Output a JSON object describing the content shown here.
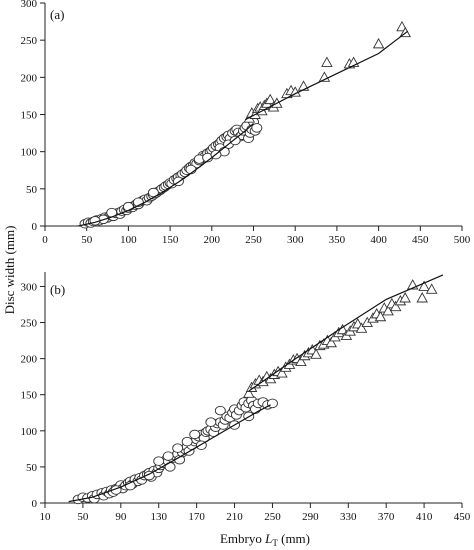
{
  "chart_data": [
    {
      "type": "scatter",
      "panel_label": "(a)",
      "xlim": [
        0,
        500
      ],
      "ylim": [
        0,
        300
      ],
      "xticks": [
        0,
        50,
        100,
        150,
        200,
        250,
        300,
        350,
        400,
        450,
        500
      ],
      "yticks": [
        0,
        50,
        100,
        150,
        200,
        250,
        300
      ],
      "series": [
        {
          "marker": "circle",
          "points": [
            [
              48,
              3
            ],
            [
              52,
              5
            ],
            [
              55,
              4
            ],
            [
              58,
              6
            ],
            [
              62,
              8
            ],
            [
              65,
              7
            ],
            [
              68,
              10
            ],
            [
              72,
              12
            ],
            [
              75,
              11
            ],
            [
              78,
              14
            ],
            [
              80,
              15
            ],
            [
              82,
              13
            ],
            [
              85,
              17
            ],
            [
              88,
              18
            ],
            [
              90,
              16
            ],
            [
              92,
              20
            ],
            [
              95,
              22
            ],
            [
              98,
              21
            ],
            [
              100,
              24
            ],
            [
              103,
              26
            ],
            [
              105,
              25
            ],
            [
              108,
              28
            ],
            [
              110,
              30
            ],
            [
              112,
              29
            ],
            [
              115,
              33
            ],
            [
              118,
              35
            ],
            [
              120,
              36
            ],
            [
              122,
              34
            ],
            [
              125,
              38
            ],
            [
              128,
              40
            ],
            [
              130,
              42
            ],
            [
              133,
              44
            ],
            [
              135,
              46
            ],
            [
              138,
              48
            ],
            [
              140,
              50
            ],
            [
              143,
              52
            ],
            [
              145,
              54
            ],
            [
              148,
              56
            ],
            [
              150,
              58
            ],
            [
              152,
              57
            ],
            [
              155,
              62
            ],
            [
              158,
              64
            ],
            [
              160,
              66
            ],
            [
              163,
              68
            ],
            [
              165,
              70
            ],
            [
              168,
              72
            ],
            [
              170,
              75
            ],
            [
              173,
              78
            ],
            [
              175,
              80
            ],
            [
              178,
              82
            ],
            [
              180,
              85
            ],
            [
              182,
              84
            ],
            [
              185,
              88
            ],
            [
              188,
              92
            ],
            [
              190,
              95
            ],
            [
              192,
              94
            ],
            [
              195,
              98
            ],
            [
              198,
              100
            ],
            [
              200,
              102
            ],
            [
              202,
              105
            ],
            [
              205,
              108
            ],
            [
              208,
              110
            ],
            [
              210,
              112
            ],
            [
              212,
              115
            ],
            [
              215,
              118
            ],
            [
              218,
              120
            ],
            [
              220,
              122
            ],
            [
              222,
              118
            ],
            [
              225,
              125
            ],
            [
              228,
              128
            ],
            [
              230,
              130
            ],
            [
              232,
              126
            ],
            [
              234,
              120
            ],
            [
              236,
              122
            ],
            [
              238,
              128
            ],
            [
              240,
              132
            ],
            [
              242,
              135
            ],
            [
              244,
              118
            ],
            [
              246,
              125
            ],
            [
              248,
              130
            ],
            [
              250,
              140
            ],
            [
              252,
              128
            ],
            [
              254,
              132
            ],
            [
              80,
              18
            ],
            [
              70,
              9
            ],
            [
              60,
              7
            ],
            [
              100,
              26
            ],
            [
              112,
              32
            ],
            [
              130,
              45
            ],
            [
              160,
              60
            ],
            [
              175,
              76
            ],
            [
              185,
              90
            ],
            [
              195,
              92
            ],
            [
              210,
              105
            ],
            [
              220,
              110
            ],
            [
              228,
              115
            ],
            [
              215,
              100
            ],
            [
              205,
              96
            ]
          ]
        },
        {
          "marker": "triangle",
          "points": [
            [
              245,
              145
            ],
            [
              248,
              152
            ],
            [
              252,
              150
            ],
            [
              255,
              158
            ],
            [
              258,
              160
            ],
            [
              260,
              155
            ],
            [
              263,
              162
            ],
            [
              266,
              165
            ],
            [
              270,
              170
            ],
            [
              274,
              160
            ],
            [
              278,
              165
            ],
            [
              290,
              178
            ],
            [
              295,
              182
            ],
            [
              300,
              180
            ],
            [
              310,
              188
            ],
            [
              335,
              200
            ],
            [
              338,
              220
            ],
            [
              365,
              218
            ],
            [
              370,
              220
            ],
            [
              400,
              245
            ],
            [
              428,
              268
            ],
            [
              432,
              260
            ]
          ]
        }
      ],
      "fit_lines": [
        {
          "x": [
            40,
            60,
            80,
            100,
            120,
            140,
            160,
            180,
            200,
            220,
            240,
            250
          ],
          "y": [
            0,
            5,
            12,
            21,
            32,
            45,
            59,
            75,
            92,
            110,
            128,
            138
          ]
        },
        {
          "x": [
            240,
            300,
            350,
            400,
            435
          ],
          "y": [
            143,
            178,
            205,
            232,
            262
          ]
        }
      ]
    },
    {
      "type": "scatter",
      "panel_label": "(b)",
      "xlim": [
        10,
        450
      ],
      "ylim": [
        0,
        320
      ],
      "xticks": [
        10,
        50,
        90,
        130,
        170,
        210,
        250,
        290,
        330,
        370,
        410,
        450
      ],
      "yticks": [
        0,
        50,
        100,
        150,
        200,
        250,
        300
      ],
      "xlabel_prefix": "Embryo ",
      "xlabel_symbol": "L",
      "xlabel_subscript": "T",
      "xlabel_suffix": " (mm)",
      "ylabel": "Disc width (mm)",
      "series": [
        {
          "marker": "circle",
          "points": [
            [
              45,
              5
            ],
            [
              50,
              8
            ],
            [
              55,
              7
            ],
            [
              60,
              10
            ],
            [
              62,
              6
            ],
            [
              65,
              12
            ],
            [
              70,
              14
            ],
            [
              72,
              10
            ],
            [
              75,
              16
            ],
            [
              78,
              13
            ],
            [
              80,
              18
            ],
            [
              82,
              15
            ],
            [
              85,
              20
            ],
            [
              88,
              22
            ],
            [
              90,
              25
            ],
            [
              92,
              20
            ],
            [
              95,
              24
            ],
            [
              98,
              28
            ],
            [
              100,
              30
            ],
            [
              102,
              26
            ],
            [
              105,
              33
            ],
            [
              108,
              30
            ],
            [
              110,
              35
            ],
            [
              112,
              32
            ],
            [
              115,
              38
            ],
            [
              118,
              40
            ],
            [
              120,
              42
            ],
            [
              122,
              36
            ],
            [
              125,
              45
            ],
            [
              128,
              42
            ],
            [
              130,
              48
            ],
            [
              132,
              52
            ],
            [
              135,
              55
            ],
            [
              138,
              60
            ],
            [
              140,
              58
            ],
            [
              142,
              50
            ],
            [
              145,
              62
            ],
            [
              148,
              65
            ],
            [
              150,
              68
            ],
            [
              152,
              60
            ],
            [
              155,
              70
            ],
            [
              158,
              74
            ],
            [
              160,
              78
            ],
            [
              162,
              72
            ],
            [
              165,
              80
            ],
            [
              168,
              85
            ],
            [
              170,
              88
            ],
            [
              172,
              92
            ],
            [
              175,
              95
            ],
            [
              178,
              90
            ],
            [
              180,
              98
            ],
            [
              182,
              100
            ],
            [
              185,
              102
            ],
            [
              188,
              98
            ],
            [
              190,
              105
            ],
            [
              192,
              110
            ],
            [
              195,
              112
            ],
            [
              198,
              108
            ],
            [
              200,
              115
            ],
            [
              202,
              120
            ],
            [
              205,
              118
            ],
            [
              208,
              125
            ],
            [
              210,
              130
            ],
            [
              212,
              122
            ],
            [
              215,
              128
            ],
            [
              218,
              135
            ],
            [
              220,
              140
            ],
            [
              222,
              132
            ],
            [
              225,
              138
            ],
            [
              228,
              142
            ],
            [
              230,
              135
            ],
            [
              232,
              130
            ],
            [
              235,
              138
            ],
            [
              240,
              140
            ],
            [
              245,
              136
            ],
            [
              250,
              138
            ],
            [
              195,
              128
            ],
            [
              185,
              112
            ],
            [
              168,
              95
            ],
            [
              150,
              76
            ],
            [
              130,
              58
            ],
            [
              140,
              65
            ],
            [
              160,
              85
            ],
            [
              175,
              80
            ],
            [
              210,
              108
            ],
            [
              225,
              120
            ],
            [
              120,
              38
            ],
            [
              100,
              24
            ],
            [
              85,
              18
            ]
          ]
        },
        {
          "marker": "triangle",
          "points": [
            [
              225,
              152
            ],
            [
              228,
              160
            ],
            [
              232,
              165
            ],
            [
              236,
              170
            ],
            [
              240,
              168
            ],
            [
              244,
              175
            ],
            [
              248,
              172
            ],
            [
              252,
              178
            ],
            [
              256,
              182
            ],
            [
              260,
              180
            ],
            [
              264,
              188
            ],
            [
              268,
              192
            ],
            [
              272,
              198
            ],
            [
              276,
              200
            ],
            [
              280,
              196
            ],
            [
              284,
              204
            ],
            [
              288,
              208
            ],
            [
              292,
              212
            ],
            [
              296,
              206
            ],
            [
              300,
              218
            ],
            [
              304,
              220
            ],
            [
              308,
              225
            ],
            [
              312,
              222
            ],
            [
              316,
              230
            ],
            [
              320,
              236
            ],
            [
              324,
              240
            ],
            [
              328,
              232
            ],
            [
              332,
              238
            ],
            [
              336,
              244
            ],
            [
              340,
              248
            ],
            [
              344,
              242
            ],
            [
              350,
              250
            ],
            [
              356,
              256
            ],
            [
              360,
              262
            ],
            [
              364,
              258
            ],
            [
              368,
              270
            ],
            [
              372,
              266
            ],
            [
              376,
              276
            ],
            [
              380,
              272
            ],
            [
              385,
              280
            ],
            [
              390,
              284
            ],
            [
              398,
              302
            ],
            [
              408,
              284
            ],
            [
              410,
              300
            ],
            [
              418,
              296
            ]
          ]
        }
      ],
      "fit_lines": [
        {
          "x": [
            35,
            60,
            90,
            120,
            150,
            180,
            210,
            235,
            248
          ],
          "y": [
            2,
            8,
            22,
            40,
            62,
            85,
            108,
            127,
            136
          ]
        },
        {
          "x": [
            225,
            270,
            320,
            370,
            430
          ],
          "y": [
            155,
            196,
            240,
            282,
            316
          ]
        }
      ]
    }
  ]
}
